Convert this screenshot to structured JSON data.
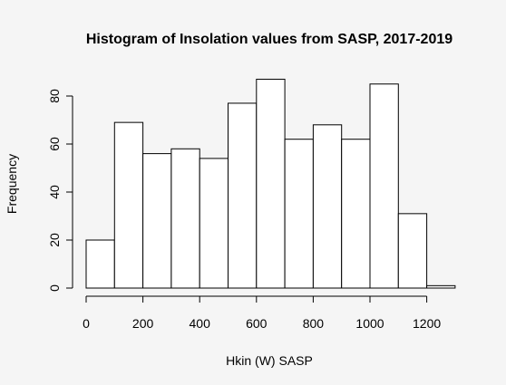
{
  "chart_data": {
    "type": "bar",
    "title": "Histogram of Insolation values from SASP, 2017-2019",
    "xlabel": "Hkin (W) SASP",
    "ylabel": "Frequency",
    "bin_width": 100,
    "bins": [
      {
        "start": 0,
        "end": 100,
        "count": 20
      },
      {
        "start": 100,
        "end": 200,
        "count": 69
      },
      {
        "start": 200,
        "end": 300,
        "count": 56
      },
      {
        "start": 300,
        "end": 400,
        "count": 58
      },
      {
        "start": 400,
        "end": 500,
        "count": 54
      },
      {
        "start": 500,
        "end": 600,
        "count": 77
      },
      {
        "start": 600,
        "end": 700,
        "count": 87
      },
      {
        "start": 700,
        "end": 800,
        "count": 62
      },
      {
        "start": 800,
        "end": 900,
        "count": 68
      },
      {
        "start": 900,
        "end": 1000,
        "count": 62
      },
      {
        "start": 1000,
        "end": 1100,
        "count": 85
      },
      {
        "start": 1100,
        "end": 1200,
        "count": 31
      },
      {
        "start": 1200,
        "end": 1300,
        "count": 1
      }
    ],
    "xlim": [
      0,
      1300
    ],
    "ylim": [
      0,
      90
    ],
    "x_ticks": [
      0,
      200,
      400,
      600,
      800,
      1000,
      1200
    ],
    "y_ticks": [
      0,
      20,
      40,
      60,
      80
    ],
    "grid": false,
    "background": "#f5f5f5",
    "bar_fill": "#ffffff",
    "bar_stroke": "#000000"
  }
}
